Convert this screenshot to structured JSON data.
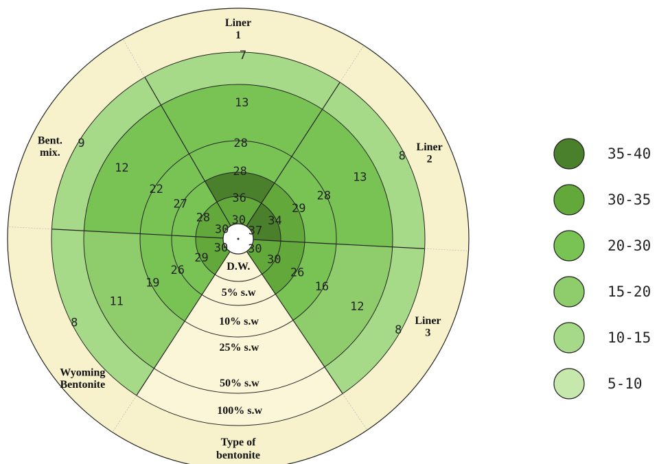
{
  "chart_data": {
    "type": "polar-heatmap",
    "sectors": [
      {
        "label": "Liner 1",
        "rings": [
          30,
          36,
          28,
          28,
          13,
          7
        ]
      },
      {
        "label": "Liner 2",
        "rings": [
          37,
          34,
          29,
          28,
          13,
          8
        ]
      },
      {
        "label": "Liner 3",
        "rings": [
          30,
          30,
          26,
          16,
          12,
          8
        ]
      },
      {
        "label": "Wyoming Bentonite",
        "rings": [
          30,
          29,
          26,
          19,
          11,
          8
        ]
      },
      {
        "label": "Bent. mix.",
        "rings": [
          30,
          28,
          27,
          22,
          12,
          9
        ]
      }
    ],
    "condition_axis": {
      "title": "Type of bentonite",
      "levels": [
        "D.W.",
        "5% s.w",
        "10% s.w",
        "25% s.w",
        "50% s.w",
        "100% s.w"
      ]
    },
    "legend": [
      {
        "range": "35-40",
        "color": "#4a7f2b"
      },
      {
        "range": "30-35",
        "color": "#62a83a"
      },
      {
        "range": "20-30",
        "color": "#79c354"
      },
      {
        "range": "15-20",
        "color": "#8fcc6c"
      },
      {
        "range": "10-15",
        "color": "#a6da88"
      },
      {
        "range": "5-10",
        "color": "#c7e8ad"
      }
    ],
    "background_color": "#f7f2cc",
    "legend_placement": "right"
  }
}
